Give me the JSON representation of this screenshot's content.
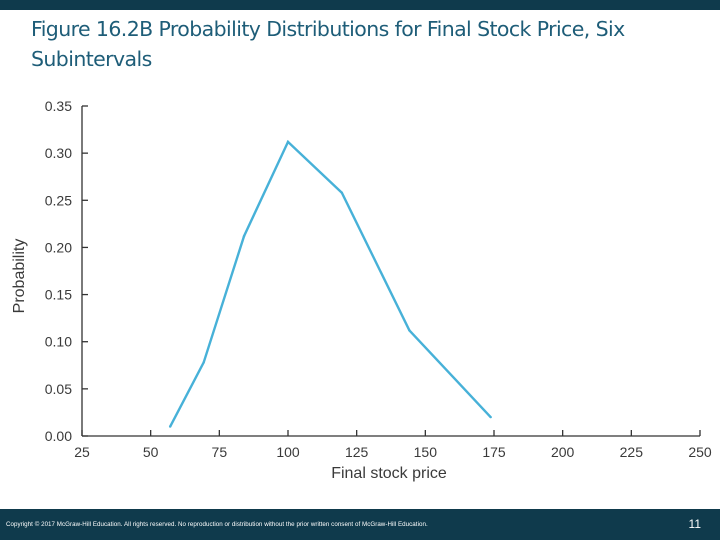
{
  "slide": {
    "title": "Figure 16.2B Probability Distributions for Final Stock Price, Six Subintervals",
    "copyright": "Copyright © 2017 McGraw-Hill Education. All rights reserved. No reproduction or distribution without the prior written consent of McGraw-Hill Education.",
    "page_number": "11"
  },
  "colors": {
    "header_bar": "#0f3a4c",
    "title": "#1e5d78",
    "series_line": "#47b1d8",
    "axis": "#333333",
    "text": "#3a3a3a"
  },
  "chart_data": {
    "type": "line",
    "title": "",
    "xlabel": "Final stock price",
    "ylabel": "Probability",
    "xlim": [
      25,
      250
    ],
    "ylim": [
      0,
      0.35
    ],
    "x_ticks": [
      25,
      50,
      75,
      100,
      125,
      150,
      175,
      200,
      225,
      250
    ],
    "x_tick_labels": [
      "25",
      "50",
      "75",
      "100",
      "125",
      "150",
      "175",
      "200",
      "225",
      "250"
    ],
    "y_ticks": [
      0,
      0.05,
      0.1,
      0.15,
      0.2,
      0.25,
      0.3,
      0.35
    ],
    "y_tick_labels": [
      "0.00",
      "0.05",
      "0.10",
      "0.15",
      "0.20",
      "0.25",
      "0.30",
      "0.35"
    ],
    "grid": false,
    "legend": "none",
    "series": [
      {
        "x": [
          57.1,
          69.3,
          84.0,
          100.0,
          119.6,
          144.2,
          173.8
        ],
        "y": [
          0.01,
          0.078,
          0.212,
          0.312,
          0.258,
          0.112,
          0.02
        ]
      }
    ]
  }
}
